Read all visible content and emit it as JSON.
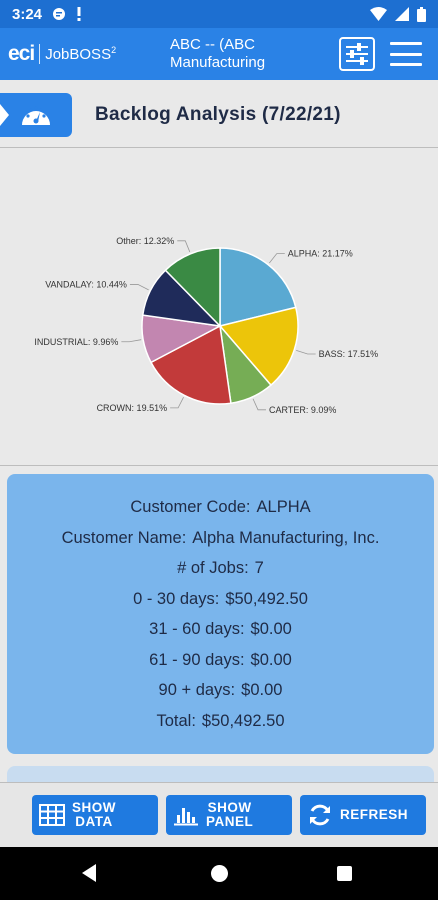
{
  "status_bar": {
    "time": "3:24"
  },
  "header": {
    "logo_eci": "eci",
    "logo_product": "JobBOSS",
    "logo_sup": "2",
    "company_line1": "ABC -- (ABC",
    "company_line2": "Manufacturing"
  },
  "title": "Backlog Analysis  (7/22/21)",
  "chart_data": {
    "type": "pie",
    "slices": [
      {
        "label": "ALPHA: 21.17%",
        "name": "ALPHA",
        "value": 21.17,
        "color": "#5aa9d2"
      },
      {
        "label": "BASS: 17.51%",
        "name": "BASS",
        "value": 17.51,
        "color": "#ecc50a"
      },
      {
        "label": "CARTER: 9.09%",
        "name": "CARTER",
        "value": 9.09,
        "color": "#76ad55"
      },
      {
        "label": "CROWN: 19.51%",
        "name": "CROWN",
        "value": 19.51,
        "color": "#c23a3a"
      },
      {
        "label": "INDUSTRIAL: 9.96%",
        "name": "INDUSTRIAL",
        "value": 9.96,
        "color": "#c286b0"
      },
      {
        "label": "VANDALAY: 10.44%",
        "name": "VANDALAY",
        "value": 10.44,
        "color": "#1f2b5a"
      },
      {
        "label": "Other: 12.32%",
        "name": "Other",
        "value": 12.32,
        "color": "#3a8a44"
      }
    ]
  },
  "details": {
    "customer_code_label": "Customer Code:",
    "customer_code": "ALPHA",
    "customer_name_label": "Customer Name:",
    "customer_name": "Alpha Manufacturing, Inc.",
    "jobs_label": "# of Jobs:",
    "jobs": "7",
    "d0_30_label": "0 - 30 days:",
    "d0_30": "$50,492.50",
    "d31_60_label": "31 - 60 days:",
    "d31_60": "$0.00",
    "d61_90_label": "61 - 90 days:",
    "d61_90": "$0.00",
    "d90_label": "90 + days:",
    "d90": "$0.00",
    "total_label": "Total:",
    "total": "$50,492.50"
  },
  "toolbar": {
    "show_data_line1": "SHOW",
    "show_data_line2": "DATA",
    "show_panel_line1": "SHOW",
    "show_panel_line2": "PANEL",
    "refresh": "REFRESH"
  }
}
